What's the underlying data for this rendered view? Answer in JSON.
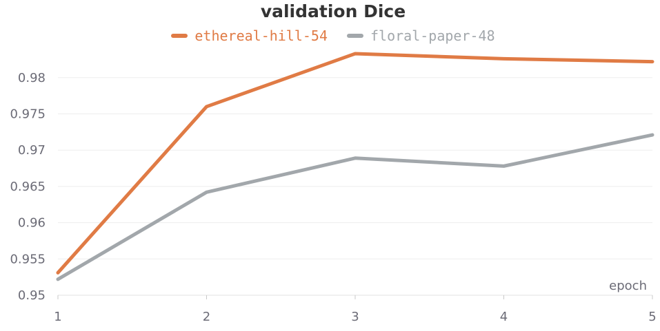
{
  "chart_data": {
    "type": "line",
    "title": "validation Dice",
    "xlabel": "epoch",
    "ylabel": "",
    "x": [
      1,
      2,
      3,
      4,
      5
    ],
    "xticks": [
      "1",
      "2",
      "3",
      "4",
      "5"
    ],
    "yticks": [
      0.95,
      0.955,
      0.96,
      0.965,
      0.97,
      0.975,
      0.98
    ],
    "ytick_labels": [
      "0.95",
      "0.955",
      "0.96",
      "0.965",
      "0.97",
      "0.975",
      "0.98"
    ],
    "xlim": [
      1,
      5
    ],
    "ylim": [
      0.95,
      0.9833
    ],
    "grid": true,
    "legend_position": "top-center",
    "series": [
      {
        "name": "ethereal-hill-54",
        "color": "#e07b45",
        "values": [
          0.9531,
          0.976,
          0.9833,
          0.9826,
          0.9822
        ]
      },
      {
        "name": "floral-paper-48",
        "color": "#a2a7ab",
        "values": [
          0.9522,
          0.9642,
          0.9689,
          0.9678,
          0.9721
        ]
      }
    ]
  }
}
